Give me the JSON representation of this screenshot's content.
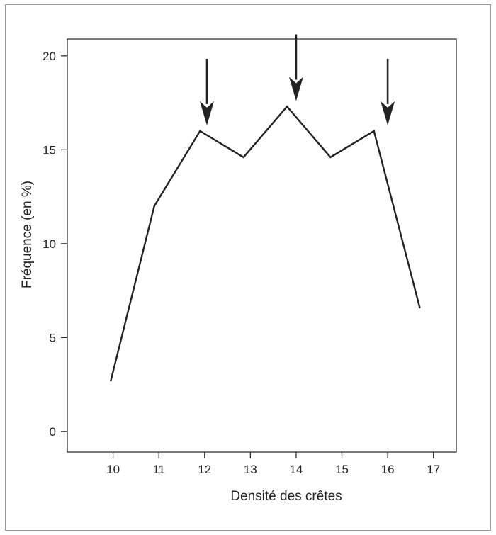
{
  "chart_data": {
    "type": "line",
    "title": "",
    "xlabel": "Densité des crêtes",
    "ylabel": "Fréquence (en %)",
    "xlim": [
      9.0,
      17.5
    ],
    "ylim": [
      -1.1,
      20.9
    ],
    "x_ticks": [
      10,
      11,
      12,
      13,
      14,
      15,
      16,
      17
    ],
    "y_ticks": [
      0,
      5,
      10,
      15,
      20
    ],
    "grid": false,
    "legend": "none",
    "series": [
      {
        "x": [
          9.95,
          10.9,
          11.9,
          12.85,
          13.8,
          14.75,
          15.7,
          16.7
        ],
        "y": [
          2.7,
          12.0,
          16.0,
          14.6,
          17.3,
          14.6,
          16.0,
          6.6
        ],
        "color": "#222222"
      }
    ],
    "annotations": [
      {
        "type": "arrow",
        "x": 12.05,
        "y": 16.3
      },
      {
        "type": "arrow",
        "x": 14.0,
        "y": 17.6
      },
      {
        "type": "arrow",
        "x": 16.0,
        "y": 16.3
      }
    ]
  }
}
